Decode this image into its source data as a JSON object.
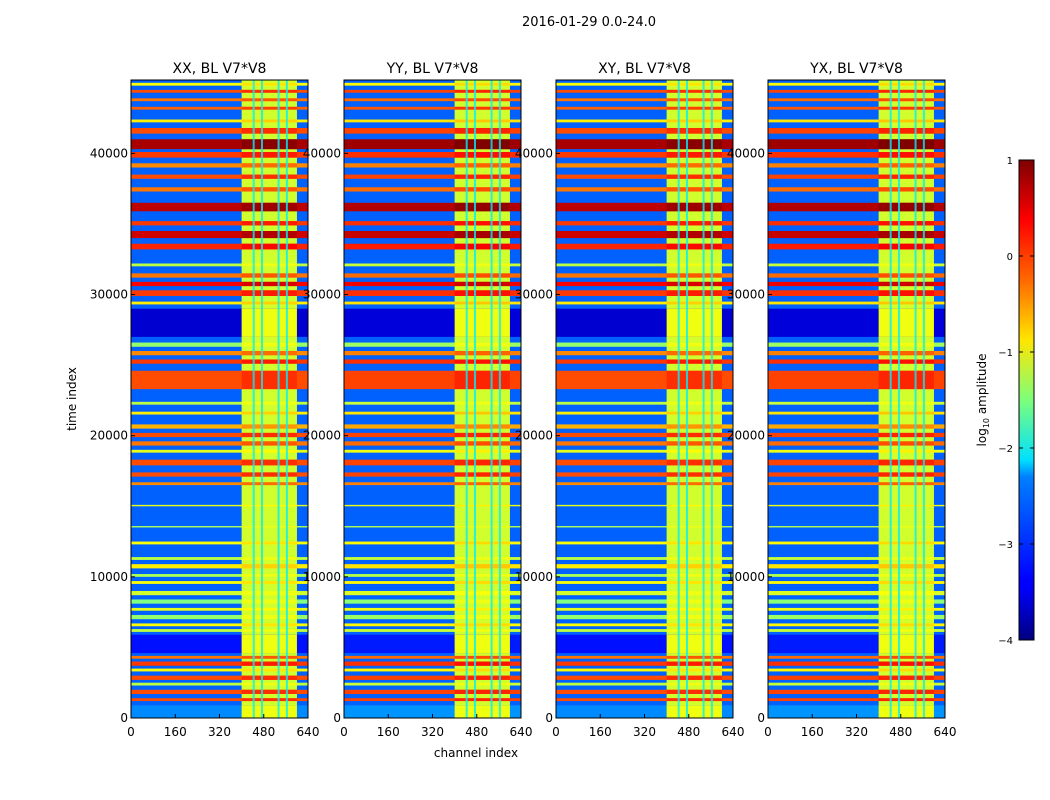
{
  "chart_data": {
    "type": "heatmap",
    "suptitle": "2016-01-29 0.0-24.0",
    "xlabel": "channel index",
    "ylabel": "time index",
    "xlim": [
      0,
      640
    ],
    "ylim": [
      0,
      45200
    ],
    "xticks": [
      "0",
      "160",
      "320",
      "480",
      "640"
    ],
    "xtick_values": [
      0,
      160,
      320,
      480,
      640
    ],
    "yticks": [
      "0",
      "10000",
      "20000",
      "30000",
      "40000"
    ],
    "ytick_values": [
      0,
      10000,
      20000,
      30000,
      40000
    ],
    "panels": [
      {
        "title": "XX, BL V7*V8"
      },
      {
        "title": "YY, BL V7*V8"
      },
      {
        "title": "XY, BL V7*V8"
      },
      {
        "title": "YX, BL V7*V8"
      }
    ],
    "band_channel_range": [
      400,
      600
    ],
    "band_min_log_amp": -1.1,
    "gap_channels": [
      440,
      470,
      530,
      560
    ],
    "background_log_amp": -2.9,
    "time_bands": [
      [
        0,
        900,
        -2.7
      ],
      [
        1200,
        1400,
        0.0
      ],
      [
        1700,
        2000,
        0.0
      ],
      [
        2300,
        2500,
        -1.2
      ],
      [
        2700,
        3000,
        0.0
      ],
      [
        3300,
        3500,
        -0.9
      ],
      [
        3700,
        4000,
        0.1
      ],
      [
        4200,
        4400,
        -0.2
      ],
      [
        4600,
        5900,
        -3.3
      ],
      [
        6100,
        6300,
        -1.2
      ],
      [
        6500,
        6700,
        -0.9
      ],
      [
        7000,
        7300,
        -1.4
      ],
      [
        7600,
        7800,
        -1.0
      ],
      [
        8100,
        8400,
        -1.5
      ],
      [
        8700,
        9000,
        -1.1
      ],
      [
        9500,
        9700,
        -0.9
      ],
      [
        10000,
        10200,
        -1.3
      ],
      [
        10600,
        10900,
        -0.8
      ],
      [
        11200,
        11400,
        -1.2
      ],
      [
        12300,
        12500,
        -0.9
      ],
      [
        13500,
        13600,
        -1.3
      ],
      [
        15000,
        15100,
        -1.0
      ],
      [
        16500,
        16700,
        -0.3
      ],
      [
        17100,
        17400,
        0.0
      ],
      [
        17900,
        18300,
        0.0
      ],
      [
        18800,
        19000,
        -1.0
      ],
      [
        19300,
        19600,
        -0.2
      ],
      [
        19900,
        20200,
        0.0
      ],
      [
        20500,
        20800,
        -0.5
      ],
      [
        21500,
        21700,
        -0.8
      ],
      [
        22200,
        22400,
        -1.2
      ],
      [
        23300,
        24600,
        0.0
      ],
      [
        25100,
        25400,
        0.1
      ],
      [
        25700,
        26000,
        -0.3
      ],
      [
        26300,
        26600,
        -1.4
      ],
      [
        27000,
        29000,
        -3.6
      ],
      [
        29300,
        29500,
        -0.8
      ],
      [
        29900,
        30300,
        0.1
      ],
      [
        30600,
        30900,
        0.4
      ],
      [
        31200,
        31500,
        -0.2
      ],
      [
        32000,
        32200,
        -1.2
      ],
      [
        33200,
        33600,
        0.2
      ],
      [
        34000,
        34500,
        0.6
      ],
      [
        34900,
        35200,
        0.1
      ],
      [
        35900,
        36500,
        0.7
      ],
      [
        37300,
        37600,
        -0.2
      ],
      [
        38200,
        38500,
        0.0
      ],
      [
        39000,
        39300,
        -0.3
      ],
      [
        39700,
        40100,
        0.1
      ],
      [
        40300,
        41000,
        0.8
      ],
      [
        41400,
        41800,
        0.0
      ],
      [
        42200,
        42400,
        -0.8
      ],
      [
        43100,
        43300,
        -0.1
      ],
      [
        43700,
        43900,
        -0.2
      ],
      [
        44300,
        44500,
        0.0
      ],
      [
        44800,
        45000,
        -0.9
      ]
    ],
    "colorbar": {
      "label_main": "log",
      "label_sub": "10",
      "label_rest": " amplitude",
      "range": [
        -4,
        1
      ],
      "ticks": [
        "1",
        "0",
        "−1",
        "−2",
        "−3",
        "−4"
      ],
      "tick_values": [
        1,
        0,
        -1,
        -2,
        -3,
        -4
      ],
      "colormap": "jet"
    }
  }
}
